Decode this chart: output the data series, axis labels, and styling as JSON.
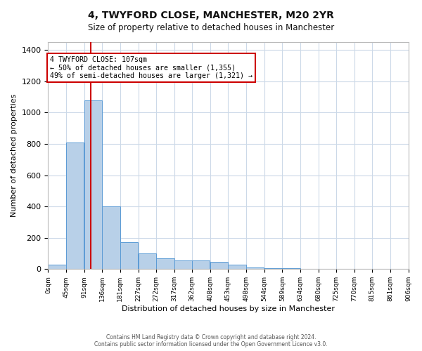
{
  "title": "4, TWYFORD CLOSE, MANCHESTER, M20 2YR",
  "subtitle": "Size of property relative to detached houses in Manchester",
  "xlabel": "Distribution of detached houses by size in Manchester",
  "ylabel": "Number of detached properties",
  "bin_edges": [
    0,
    45,
    91,
    136,
    181,
    227,
    272,
    317,
    362,
    408,
    453,
    498,
    544,
    589,
    634,
    680,
    725,
    770,
    815,
    861,
    906
  ],
  "bar_heights": [
    30,
    810,
    1080,
    400,
    170,
    100,
    70,
    55,
    55,
    45,
    30,
    10,
    5,
    5,
    3,
    2,
    1,
    1,
    1,
    1
  ],
  "bar_color": "#b8d0e8",
  "bar_edge_color": "#5b9bd5",
  "property_size": 107,
  "vline_color": "#cc0000",
  "annotation_text": "4 TWYFORD CLOSE: 107sqm\n← 50% of detached houses are smaller (1,355)\n49% of semi-detached houses are larger (1,321) →",
  "annotation_box_color": "#cc0000",
  "annotation_text_color": "#000000",
  "ylim": [
    0,
    1450
  ],
  "yticks": [
    0,
    200,
    400,
    600,
    800,
    1000,
    1200,
    1400
  ],
  "background_color": "#ffffff",
  "grid_color": "#ccd9e8",
  "footer_line1": "Contains HM Land Registry data © Crown copyright and database right 2024.",
  "footer_line2": "Contains public sector information licensed under the Open Government Licence v3.0."
}
